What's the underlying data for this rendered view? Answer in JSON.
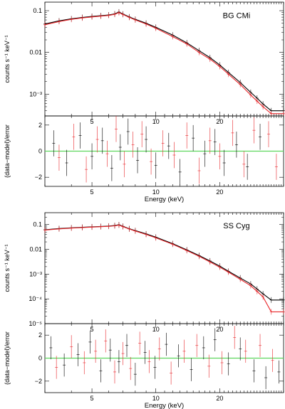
{
  "chart_data": [
    {
      "type": "line",
      "panel": "spectrum",
      "annotation": "BG CMi",
      "xscale": "log",
      "yscale": "log",
      "xlim": [
        3,
        40
      ],
      "ylim": [
        0.0003,
        0.11
      ],
      "xticks": [
        5,
        10,
        20
      ],
      "yticks": [
        {
          "v": 0.1,
          "label": "0.1"
        },
        {
          "v": 0.01,
          "label": "0.01"
        },
        {
          "v": 0.001,
          "label": "10⁻³"
        }
      ],
      "ylabel": "counts s⁻¹ keV⁻¹",
      "xlabel": "",
      "series": [
        {
          "color": "#000000",
          "x": [
            3,
            3.5,
            4,
            4.5,
            5,
            5.5,
            6,
            6.4,
            6.7,
            7,
            7.5,
            8,
            9,
            10,
            12,
            14,
            16,
            18,
            20,
            22,
            25,
            28,
            30,
            32,
            35,
            40
          ],
          "values": [
            0.048,
            0.057,
            0.064,
            0.069,
            0.073,
            0.076,
            0.079,
            0.084,
            0.093,
            0.083,
            0.071,
            0.062,
            0.05,
            0.04,
            0.026,
            0.017,
            0.011,
            0.0075,
            0.005,
            0.0033,
            0.0019,
            0.0011,
            0.0008,
            0.00058,
            0.0004,
            0.0004
          ]
        },
        {
          "color": "#e8262a",
          "x": [
            3,
            3.5,
            4,
            4.5,
            5,
            5.5,
            6,
            6.4,
            6.7,
            7,
            7.5,
            8,
            9,
            10,
            12,
            14,
            16,
            18,
            20,
            22,
            25,
            28,
            30,
            32,
            35,
            40
          ],
          "values": [
            0.046,
            0.055,
            0.062,
            0.067,
            0.071,
            0.074,
            0.077,
            0.082,
            0.09,
            0.081,
            0.069,
            0.06,
            0.048,
            0.038,
            0.024,
            0.016,
            0.01,
            0.0069,
            0.0046,
            0.003,
            0.0017,
            0.00095,
            0.00068,
            0.0005,
            0.00034,
            0.00034
          ]
        }
      ]
    },
    {
      "type": "scatter",
      "panel": "residuals",
      "xscale": "log",
      "xlim": [
        3,
        40
      ],
      "ylim": [
        -2.7,
        2.7
      ],
      "xticks": [
        5,
        10,
        20
      ],
      "yticks": [
        {
          "v": 2,
          "label": "2"
        },
        {
          "v": 0,
          "label": "0"
        },
        {
          "v": -2,
          "label": "−2"
        }
      ],
      "ylabel": "(data−model)/error",
      "xlabel": "Energy (keV)",
      "reference_line": {
        "y": 0,
        "color": "#5ed65e"
      },
      "series": [
        {
          "color": "#000000",
          "x": [
            3.3,
            3.8,
            4.4,
            5.0,
            5.6,
            6.2,
            6.8,
            7.4,
            8.2,
            9.0,
            10.0,
            11.5,
            13.0,
            15.0,
            17.0,
            19.0,
            21.0,
            24.0,
            27.0,
            31.0
          ],
          "values": [
            0.6,
            -0.9,
            1.2,
            -0.4,
            0.8,
            -1.3,
            0.3,
            1.5,
            -0.7,
            0.9,
            -1.1,
            0.4,
            -1.6,
            1.0,
            -0.2,
            0.7,
            -0.9,
            0.5,
            -1.2,
            1.1
          ]
        },
        {
          "color": "#e8262a",
          "x": [
            3.5,
            4.1,
            4.7,
            5.3,
            5.9,
            6.5,
            7.1,
            7.8,
            8.6,
            9.5,
            10.8,
            12.2,
            14.0,
            16.0,
            18.0,
            20.0,
            23.0,
            26.0,
            29.0,
            34.0,
            37.0
          ],
          "values": [
            -0.5,
            1.1,
            -1.4,
            0.9,
            -0.2,
            1.7,
            -1.0,
            0.5,
            1.3,
            -0.8,
            0.6,
            -0.3,
            1.2,
            -1.5,
            0.8,
            -0.4,
            1.4,
            -1.0,
            1.6,
            1.3,
            -1.2
          ]
        }
      ]
    },
    {
      "type": "line",
      "panel": "spectrum",
      "annotation": "SS Cyg",
      "xscale": "log",
      "yscale": "log",
      "xlim": [
        3,
        40
      ],
      "ylim": [
        1e-05,
        0.2
      ],
      "xticks": [
        5,
        10,
        20
      ],
      "yticks": [
        {
          "v": 0.1,
          "label": "0.1"
        },
        {
          "v": 0.01,
          "label": "0.01"
        },
        {
          "v": 0.001,
          "label": "10⁻³"
        },
        {
          "v": 0.0001,
          "label": "10⁻⁴"
        },
        {
          "v": 1e-05,
          "label": "10⁻⁵"
        }
      ],
      "ylabel": "counts s⁻¹ keV⁻¹",
      "xlabel": "",
      "series": [
        {
          "color": "#000000",
          "x": [
            3,
            3.5,
            4,
            4.5,
            5,
            5.5,
            6,
            6.4,
            6.7,
            7,
            7.5,
            8,
            9,
            10,
            12,
            14,
            16,
            18,
            20,
            22,
            25,
            28,
            30,
            32,
            35,
            40
          ],
          "values": [
            0.062,
            0.069,
            0.074,
            0.078,
            0.081,
            0.084,
            0.087,
            0.091,
            0.098,
            0.085,
            0.068,
            0.057,
            0.042,
            0.031,
            0.017,
            0.0095,
            0.0056,
            0.0034,
            0.0021,
            0.0013,
            0.0007,
            0.0004,
            0.00025,
            0.00016,
            9e-05,
            9e-05
          ]
        },
        {
          "color": "#e8262a",
          "x": [
            3,
            3.5,
            4,
            4.5,
            5,
            5.5,
            6,
            6.4,
            6.7,
            7,
            7.5,
            8,
            9,
            10,
            12,
            14,
            16,
            18,
            20,
            22,
            25,
            28,
            30,
            32,
            35,
            40
          ],
          "values": [
            0.06,
            0.067,
            0.072,
            0.076,
            0.079,
            0.082,
            0.085,
            0.089,
            0.095,
            0.082,
            0.066,
            0.055,
            0.04,
            0.029,
            0.016,
            0.0089,
            0.0052,
            0.0031,
            0.0019,
            0.0012,
            0.00062,
            0.00034,
            0.0002,
            0.00012,
            3e-05,
            3e-05
          ]
        }
      ]
    },
    {
      "type": "scatter",
      "panel": "residuals",
      "xscale": "log",
      "xlim": [
        3,
        40
      ],
      "ylim": [
        -3.0,
        3.0
      ],
      "xticks": [
        5,
        10,
        20
      ],
      "yticks": [
        {
          "v": 2,
          "label": "2"
        },
        {
          "v": 0,
          "label": "0"
        },
        {
          "v": -2,
          "label": "−2"
        }
      ],
      "ylabel": "(data−model)/error",
      "xlabel": "Energy (keV)",
      "reference_line": {
        "y": 0,
        "color": "#5ed65e"
      },
      "series": [
        {
          "color": "#000000",
          "x": [
            3.2,
            3.7,
            4.3,
            4.9,
            5.5,
            6.1,
            6.7,
            7.3,
            8.0,
            8.9,
            9.9,
            11.2,
            12.8,
            14.7,
            16.8,
            19.0,
            22.0,
            25.0,
            29.0,
            33.0,
            38.0
          ],
          "values": [
            0.9,
            -0.6,
            0.3,
            1.4,
            -1.1,
            0.7,
            -0.3,
            1.1,
            -1.4,
            0.5,
            -0.8,
            1.2,
            0.2,
            -1.0,
            0.9,
            1.6,
            -0.5,
            0.8,
            -1.1,
            -1.7,
            -1.2
          ]
        },
        {
          "color": "#e8262a",
          "x": [
            3.4,
            4.0,
            4.6,
            5.2,
            5.8,
            6.4,
            7.0,
            7.6,
            8.4,
            9.3,
            10.4,
            11.8,
            13.6,
            15.6,
            17.8,
            20.5,
            23.5,
            26.5,
            31.0,
            35.5
          ],
          "values": [
            -0.8,
            1.0,
            -0.4,
            0.6,
            1.5,
            -1.2,
            0.4,
            -0.9,
            1.3,
            -0.3,
            0.8,
            -1.3,
            0.6,
            1.1,
            -0.7,
            -0.4,
            1.8,
            0.6,
            1.1,
            -0.2
          ]
        }
      ]
    }
  ]
}
